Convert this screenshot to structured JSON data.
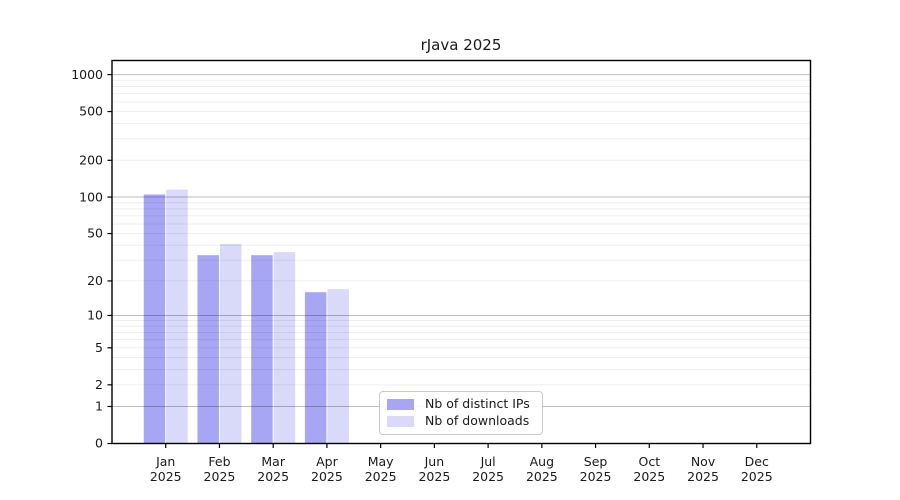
{
  "title": "rJava 2025",
  "chart_data": {
    "type": "bar",
    "title": "rJava 2025",
    "categories": [
      "Jan",
      "Feb",
      "Mar",
      "Apr",
      "May",
      "Jun",
      "Jul",
      "Aug",
      "Sep",
      "Oct",
      "Nov",
      "Dec"
    ],
    "x_tick_second_line": "2025",
    "series": [
      {
        "name": "Nb of distinct IPs",
        "color": "#a6a6f5",
        "values": [
          105,
          33,
          33,
          16,
          null,
          null,
          null,
          null,
          null,
          null,
          null,
          null
        ]
      },
      {
        "name": "Nb of downloads",
        "color": "#d9d9f9",
        "values": [
          115,
          41,
          35,
          17,
          null,
          null,
          null,
          null,
          null,
          null,
          null,
          null
        ]
      }
    ],
    "xlabel": "",
    "ylabel": "",
    "y_scale": "log10(value+1)",
    "ylim": [
      0,
      1302
    ],
    "y_ticks": [
      0,
      1,
      2,
      5,
      10,
      20,
      50,
      100,
      200,
      500,
      1000
    ],
    "y_major_gridlines": [
      1,
      10,
      100,
      1000
    ],
    "y_minor_gridline_pattern": "2-9, 20-90, 200-900",
    "grid": true,
    "legend_position": "lower center-left inside plot"
  },
  "colors": {
    "background": "#ffffff",
    "frame": "#000000",
    "major_grid": "rgba(0,0,0,0.26)",
    "minor_grid": "rgba(0,0,0,0.065)",
    "text": "#1a1a1a",
    "bar_distinct_ips": "#a6a6f5",
    "bar_downloads": "#d9d9f9",
    "legend_border": "#c9c9c9"
  }
}
